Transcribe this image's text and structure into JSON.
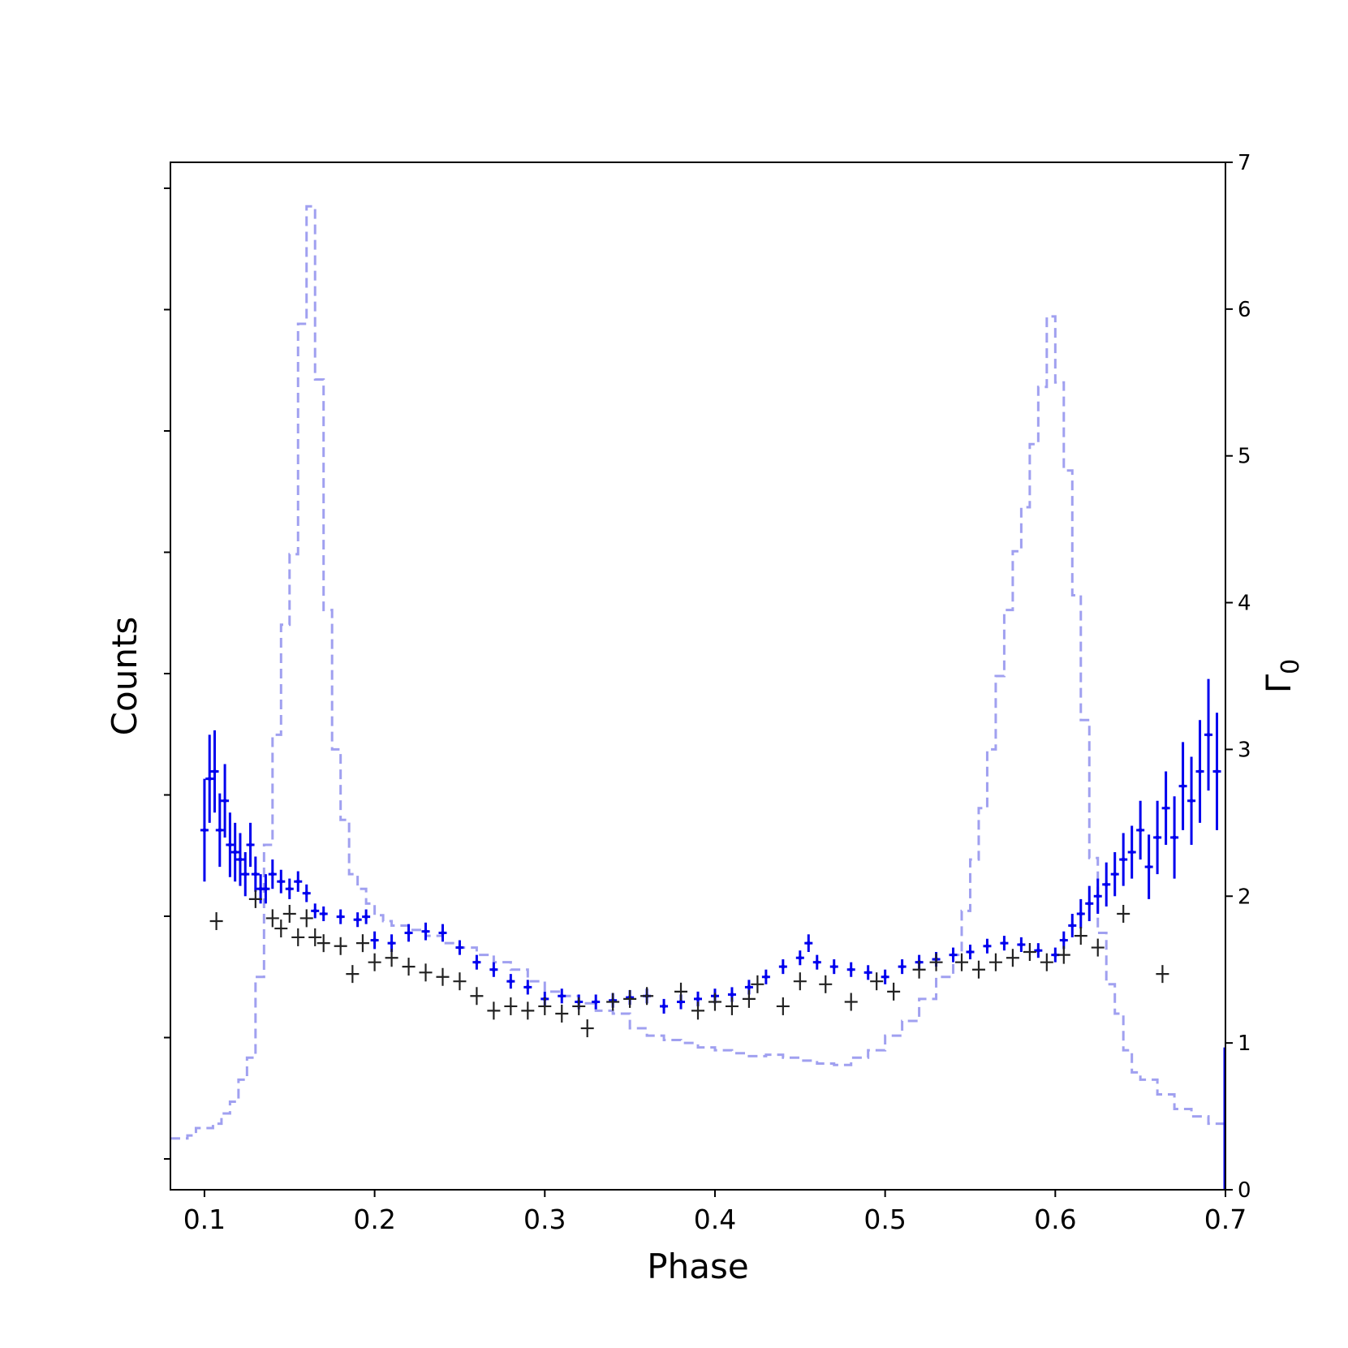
{
  "chart_data": {
    "type": "line",
    "xlabel": "Phase",
    "ylabel_left": "Counts",
    "ylabel_right": "Γ",
    "ylabel_right_subscript": "0",
    "xlim": [
      0.08,
      0.7
    ],
    "ylim_right": [
      0,
      7
    ],
    "x_ticks": [
      "0.1",
      "0.2",
      "0.3",
      "0.4",
      "0.5",
      "0.6",
      "0.7"
    ],
    "y_right_ticks": [
      "0",
      "1",
      "2",
      "3",
      "4",
      "5",
      "6",
      "7"
    ],
    "left_axis_tick_labels_shown": false,
    "grid": false,
    "colors": {
      "pulse_profile": "#a0a0f0",
      "gamma_blue": "#0000ee",
      "gamma_black": "#222222",
      "axes": "#000000"
    },
    "series": [
      {
        "style": "dashed step (light blue), pulse profile in Γ-axis units",
        "x": [
          0.08,
          0.085,
          0.09,
          0.095,
          0.1,
          0.105,
          0.11,
          0.115,
          0.12,
          0.125,
          0.13,
          0.135,
          0.14,
          0.145,
          0.15,
          0.155,
          0.16,
          0.165,
          0.17,
          0.175,
          0.18,
          0.185,
          0.19,
          0.195,
          0.2,
          0.205,
          0.21,
          0.22,
          0.23,
          0.24,
          0.25,
          0.26,
          0.27,
          0.28,
          0.29,
          0.3,
          0.31,
          0.32,
          0.33,
          0.34,
          0.35,
          0.36,
          0.37,
          0.38,
          0.39,
          0.4,
          0.41,
          0.42,
          0.43,
          0.44,
          0.45,
          0.46,
          0.47,
          0.48,
          0.49,
          0.5,
          0.51,
          0.52,
          0.53,
          0.54,
          0.545,
          0.55,
          0.555,
          0.56,
          0.565,
          0.57,
          0.575,
          0.58,
          0.585,
          0.59,
          0.595,
          0.6,
          0.605,
          0.61,
          0.615,
          0.62,
          0.625,
          0.63,
          0.635,
          0.64,
          0.645,
          0.65,
          0.66,
          0.67,
          0.68,
          0.69,
          0.7
        ],
        "values": [
          0.35,
          0.35,
          0.37,
          0.42,
          0.42,
          0.45,
          0.52,
          0.6,
          0.75,
          0.9,
          1.45,
          2.35,
          3.1,
          3.85,
          4.33,
          5.9,
          6.7,
          5.52,
          3.95,
          3.0,
          2.52,
          2.15,
          2.05,
          1.95,
          1.87,
          1.83,
          1.8,
          1.77,
          1.73,
          1.68,
          1.65,
          1.6,
          1.55,
          1.5,
          1.42,
          1.35,
          1.32,
          1.27,
          1.22,
          1.2,
          1.1,
          1.05,
          1.02,
          1.0,
          0.97,
          0.95,
          0.93,
          0.91,
          0.92,
          0.9,
          0.88,
          0.86,
          0.85,
          0.9,
          0.95,
          1.05,
          1.15,
          1.3,
          1.45,
          1.6,
          1.9,
          2.25,
          2.6,
          3.0,
          3.5,
          3.95,
          4.35,
          4.65,
          5.08,
          5.47,
          5.95,
          5.5,
          4.9,
          4.05,
          3.2,
          2.26,
          1.75,
          1.4,
          1.2,
          0.95,
          0.8,
          0.75,
          0.65,
          0.55,
          0.5,
          0.45,
          0.42
        ]
      },
      {
        "style": "blue error-bar points (Γ)",
        "x": [
          0.1,
          0.103,
          0.106,
          0.109,
          0.112,
          0.115,
          0.118,
          0.121,
          0.124,
          0.127,
          0.13,
          0.133,
          0.136,
          0.14,
          0.145,
          0.15,
          0.155,
          0.16,
          0.165,
          0.17,
          0.18,
          0.19,
          0.195,
          0.2,
          0.21,
          0.22,
          0.23,
          0.24,
          0.25,
          0.26,
          0.27,
          0.28,
          0.29,
          0.3,
          0.31,
          0.32,
          0.33,
          0.34,
          0.35,
          0.36,
          0.37,
          0.38,
          0.39,
          0.4,
          0.41,
          0.42,
          0.43,
          0.44,
          0.45,
          0.455,
          0.46,
          0.47,
          0.48,
          0.49,
          0.5,
          0.51,
          0.52,
          0.53,
          0.54,
          0.55,
          0.56,
          0.57,
          0.58,
          0.59,
          0.6,
          0.605,
          0.61,
          0.615,
          0.62,
          0.625,
          0.63,
          0.635,
          0.64,
          0.645,
          0.65,
          0.655,
          0.66,
          0.665,
          0.67,
          0.675,
          0.68,
          0.685,
          0.69,
          0.695
        ],
        "values": [
          2.45,
          2.8,
          2.85,
          2.45,
          2.65,
          2.35,
          2.3,
          2.25,
          2.15,
          2.35,
          2.15,
          2.05,
          2.05,
          2.15,
          2.1,
          2.05,
          2.1,
          2.02,
          1.9,
          1.88,
          1.86,
          1.84,
          1.86,
          1.7,
          1.68,
          1.75,
          1.76,
          1.75,
          1.65,
          1.55,
          1.5,
          1.42,
          1.38,
          1.3,
          1.32,
          1.28,
          1.28,
          1.29,
          1.31,
          1.32,
          1.25,
          1.28,
          1.3,
          1.32,
          1.33,
          1.38,
          1.45,
          1.52,
          1.58,
          1.68,
          1.55,
          1.52,
          1.5,
          1.48,
          1.45,
          1.52,
          1.55,
          1.57,
          1.6,
          1.62,
          1.66,
          1.68,
          1.67,
          1.63,
          1.6,
          1.7,
          1.8,
          1.88,
          1.95,
          2.0,
          2.08,
          2.15,
          2.25,
          2.3,
          2.45,
          2.2,
          2.4,
          2.6,
          2.4,
          2.75,
          2.65,
          2.85,
          3.1,
          2.85
        ],
        "errors": [
          0.35,
          0.3,
          0.28,
          0.25,
          0.25,
          0.22,
          0.2,
          0.18,
          0.15,
          0.15,
          0.12,
          0.1,
          0.1,
          0.1,
          0.08,
          0.07,
          0.07,
          0.06,
          0.05,
          0.05,
          0.05,
          0.05,
          0.05,
          0.06,
          0.06,
          0.06,
          0.06,
          0.06,
          0.05,
          0.05,
          0.05,
          0.05,
          0.05,
          0.05,
          0.05,
          0.05,
          0.05,
          0.05,
          0.05,
          0.05,
          0.05,
          0.05,
          0.05,
          0.05,
          0.05,
          0.05,
          0.05,
          0.05,
          0.05,
          0.06,
          0.05,
          0.05,
          0.05,
          0.05,
          0.05,
          0.05,
          0.05,
          0.05,
          0.05,
          0.05,
          0.05,
          0.05,
          0.05,
          0.05,
          0.05,
          0.06,
          0.08,
          0.1,
          0.12,
          0.12,
          0.15,
          0.15,
          0.18,
          0.18,
          0.2,
          0.22,
          0.25,
          0.25,
          0.28,
          0.3,
          0.3,
          0.35,
          0.38,
          0.4
        ]
      },
      {
        "style": "black error-bar crosses (Γ)",
        "x": [
          0.107,
          0.13,
          0.14,
          0.145,
          0.15,
          0.155,
          0.16,
          0.165,
          0.17,
          0.18,
          0.187,
          0.193,
          0.2,
          0.21,
          0.22,
          0.23,
          0.24,
          0.25,
          0.26,
          0.27,
          0.28,
          0.29,
          0.3,
          0.31,
          0.32,
          0.325,
          0.34,
          0.35,
          0.36,
          0.38,
          0.39,
          0.4,
          0.41,
          0.42,
          0.425,
          0.44,
          0.45,
          0.465,
          0.48,
          0.495,
          0.505,
          0.52,
          0.53,
          0.545,
          0.555,
          0.565,
          0.575,
          0.585,
          0.595,
          0.605,
          0.615,
          0.625,
          0.64,
          0.663
        ],
        "values": [
          1.83,
          1.98,
          1.85,
          1.78,
          1.88,
          1.72,
          1.85,
          1.72,
          1.68,
          1.66,
          1.47,
          1.68,
          1.55,
          1.58,
          1.52,
          1.48,
          1.45,
          1.42,
          1.32,
          1.22,
          1.25,
          1.22,
          1.25,
          1.2,
          1.25,
          1.1,
          1.28,
          1.3,
          1.32,
          1.35,
          1.22,
          1.28,
          1.25,
          1.3,
          1.4,
          1.25,
          1.42,
          1.4,
          1.28,
          1.42,
          1.35,
          1.5,
          1.55,
          1.55,
          1.5,
          1.55,
          1.58,
          1.62,
          1.55,
          1.6,
          1.73,
          1.65,
          1.88,
          1.47
        ]
      }
    ]
  }
}
